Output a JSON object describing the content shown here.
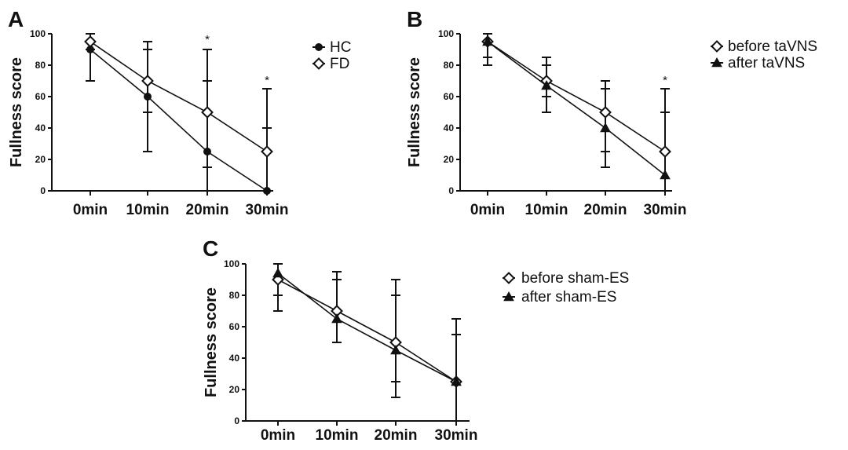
{
  "chart_data": [
    {
      "panel": "A",
      "type": "line",
      "ylabel": "Fullness score",
      "ylim": [
        0,
        100
      ],
      "yticks": [
        0,
        20,
        40,
        60,
        80,
        100
      ],
      "categories": [
        "0min",
        "10min",
        "20min",
        "30min"
      ],
      "series": [
        {
          "name": "HC",
          "marker": "circle",
          "values": [
            90,
            60,
            25,
            0
          ],
          "err_low": [
            70,
            25,
            0,
            0
          ],
          "err_high": [
            95,
            90,
            70,
            40
          ]
        },
        {
          "name": "FD",
          "marker": "diamond",
          "values": [
            95,
            70,
            50,
            25
          ],
          "err_low": [
            90,
            50,
            15,
            0
          ],
          "err_high": [
            100,
            95,
            90,
            65
          ]
        }
      ],
      "annotations": [
        {
          "text": "*",
          "category": "20min",
          "y": 97
        },
        {
          "text": "*",
          "category": "30min",
          "y": 71
        }
      ],
      "legend": "top-right outside"
    },
    {
      "panel": "B",
      "type": "line",
      "ylabel": "Fullness score",
      "ylim": [
        0,
        100
      ],
      "yticks": [
        0,
        20,
        40,
        60,
        80,
        100
      ],
      "categories": [
        "0min",
        "10min",
        "20min",
        "30min"
      ],
      "series": [
        {
          "name": "before taVNS",
          "marker": "diamond",
          "values": [
            95,
            70,
            50,
            25
          ],
          "err_low": [
            85,
            60,
            25,
            0
          ],
          "err_high": [
            100,
            85,
            70,
            65
          ]
        },
        {
          "name": "after taVNS",
          "marker": "triangle",
          "values": [
            95,
            67,
            40,
            10
          ],
          "err_low": [
            80,
            50,
            15,
            0
          ],
          "err_high": [
            100,
            80,
            65,
            50
          ]
        }
      ],
      "annotations": [
        {
          "text": "*",
          "category": "30min",
          "y": 71
        }
      ],
      "legend": "top-right outside"
    },
    {
      "panel": "C",
      "type": "line",
      "ylabel": "Fullness score",
      "ylim": [
        0,
        100
      ],
      "yticks": [
        0,
        20,
        40,
        60,
        80,
        100
      ],
      "categories": [
        "0min",
        "10min",
        "20min",
        "30min"
      ],
      "series": [
        {
          "name": "before sham-ES",
          "marker": "diamond",
          "values": [
            90,
            70,
            50,
            25
          ],
          "err_low": [
            80,
            50,
            25,
            0
          ],
          "err_high": [
            100,
            90,
            80,
            55
          ]
        },
        {
          "name": "after sham-ES",
          "marker": "triangle",
          "values": [
            94,
            65,
            45,
            25
          ],
          "err_low": [
            70,
            50,
            15,
            0
          ],
          "err_high": [
            100,
            95,
            90,
            65
          ]
        }
      ],
      "annotations": [],
      "legend": "top-right outside"
    }
  ]
}
